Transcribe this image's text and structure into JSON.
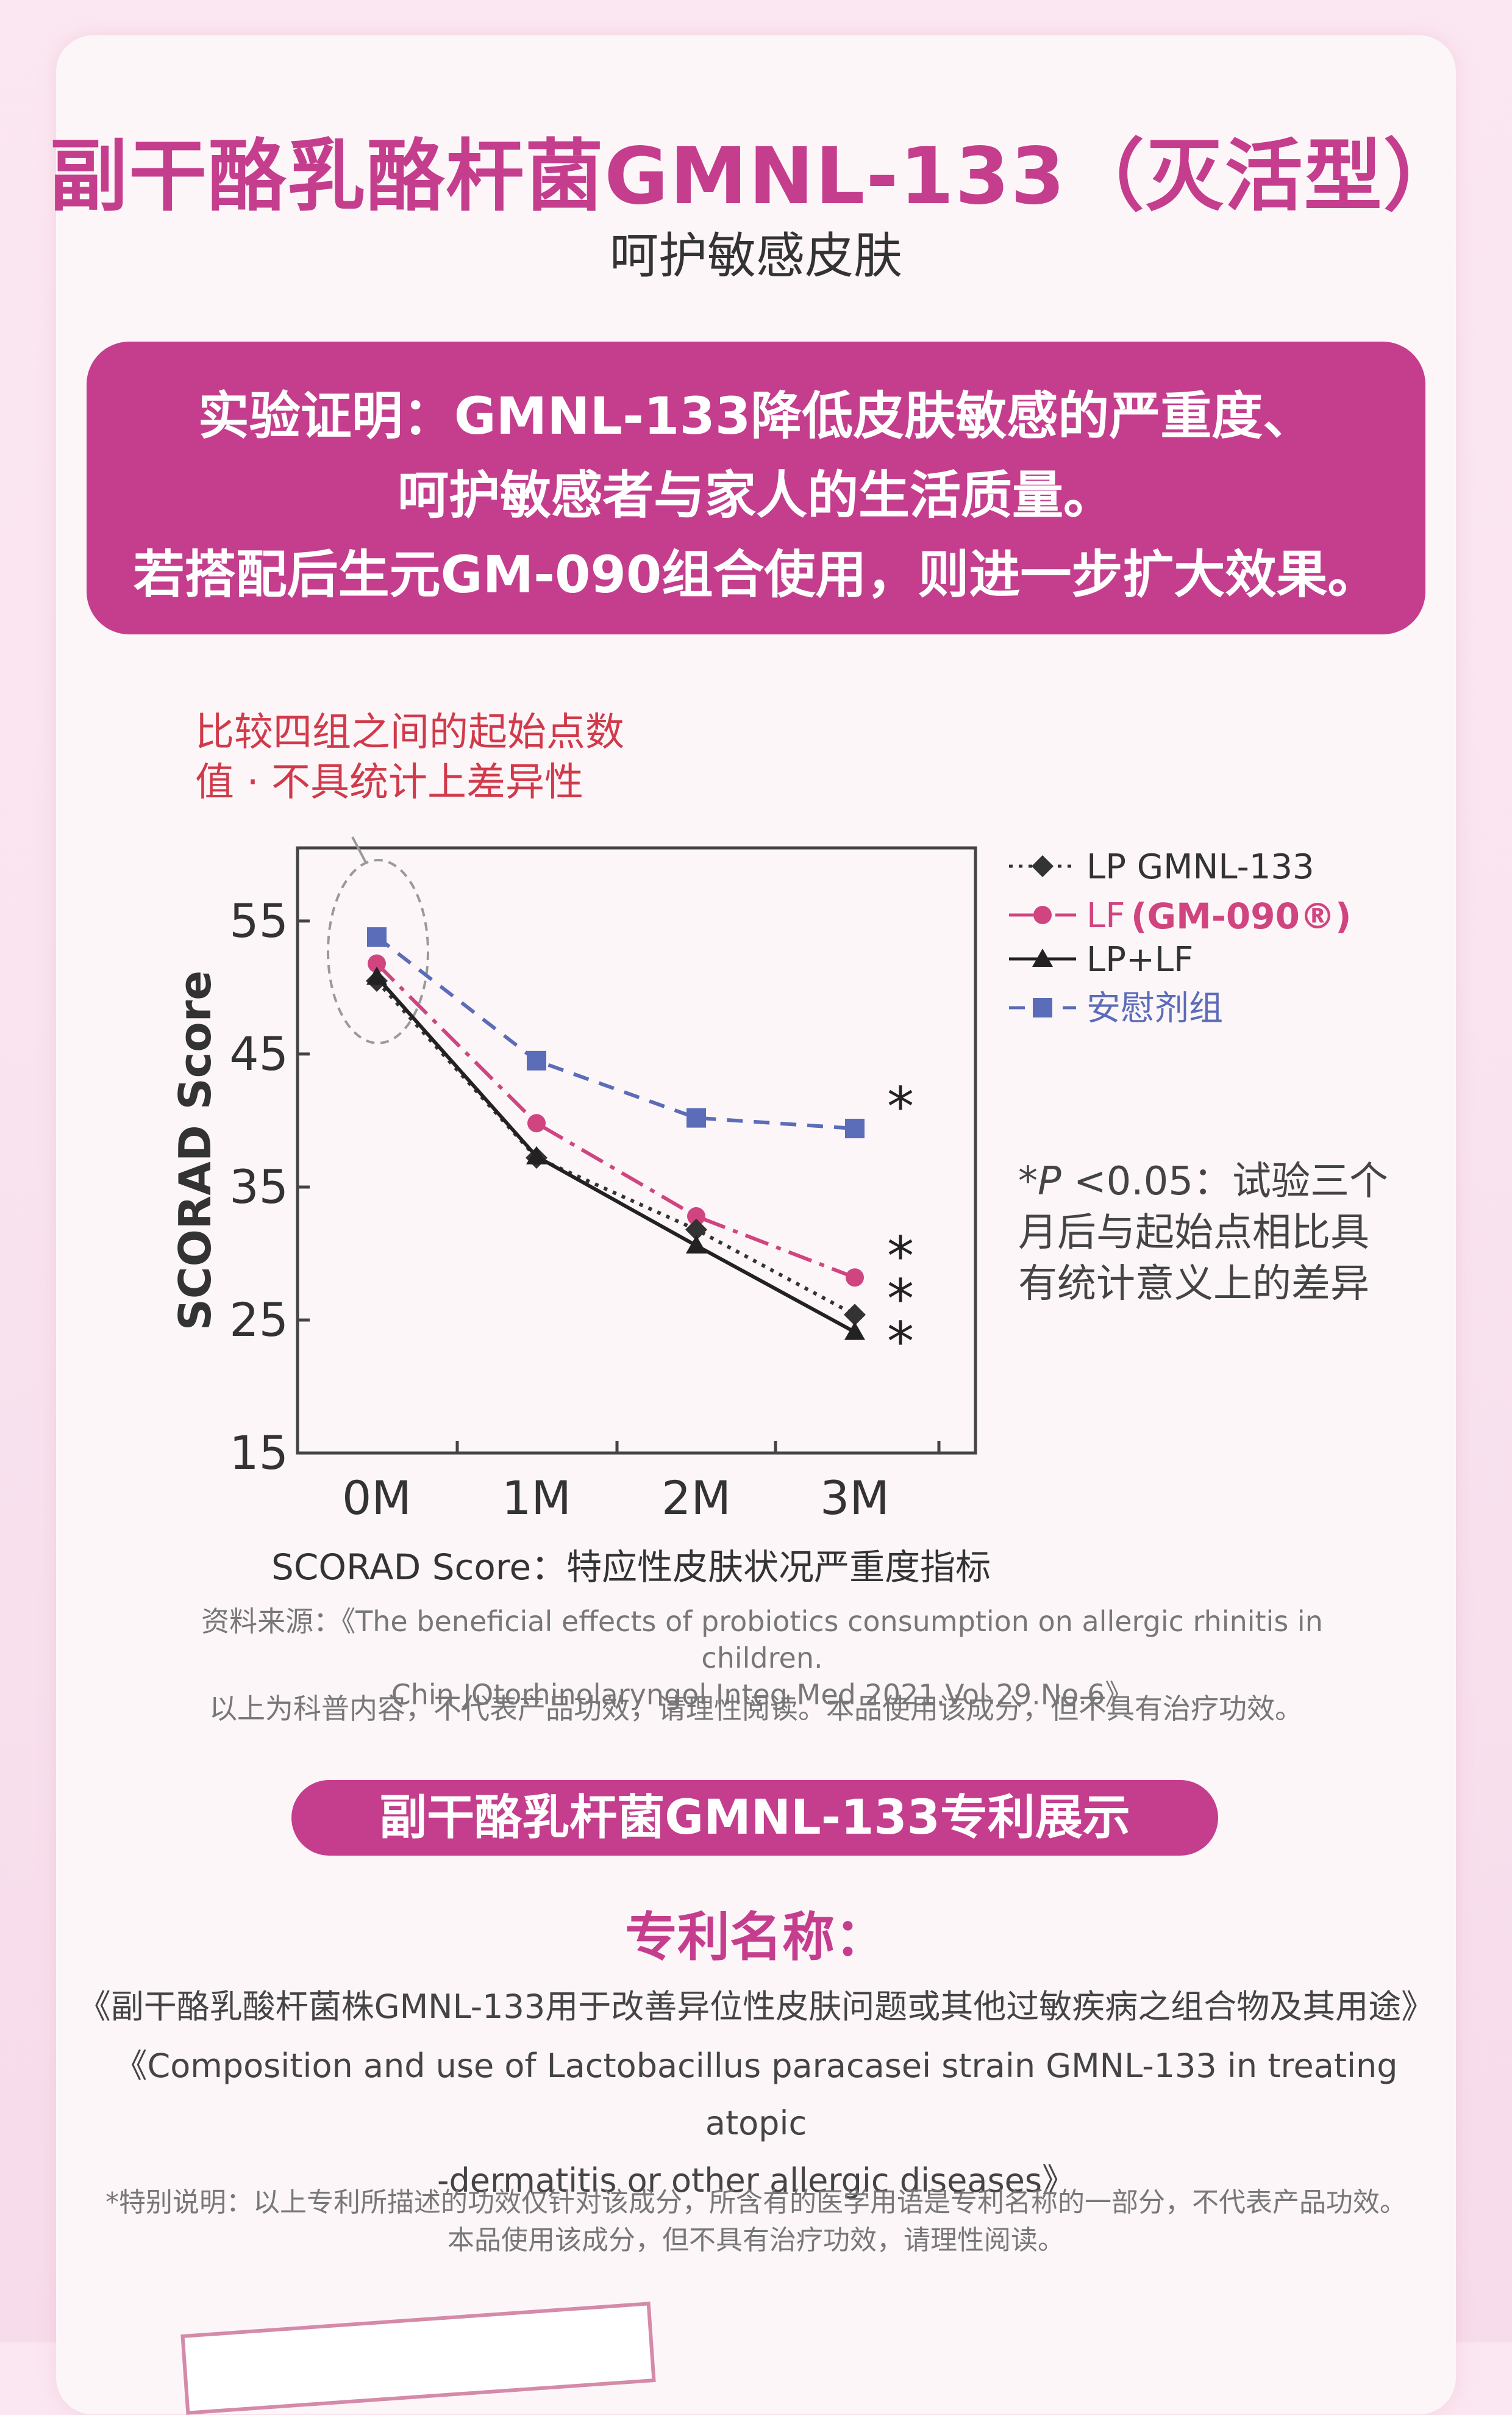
{
  "header": {
    "title": "副干酪乳酪杆菌GMNL-133（灭活型）",
    "subtitle": "呵护敏感皮肤"
  },
  "claim": {
    "line1": "实验证明：GMNL-133降低皮肤敏感的严重度、",
    "line2": "呵护敏感者与家人的生活质量。",
    "line3": "若搭配后生元GM-090组合使用，则进一步扩大效果。"
  },
  "baseline_note": {
    "line1": "比较四组之间的起始点数",
    "line2": "值 · 不具统计上差异性"
  },
  "significance_note": {
    "p_label": "*P",
    "p_value": " <0.05：试验三个",
    "line2": "月后与起始点相比具",
    "line3": "有统计意义上的差异"
  },
  "colors": {
    "accent": "#c43e8d",
    "lp": "#333333",
    "lf": "#d0457f",
    "lplf": "#222222",
    "placebo": "#5b6cb8"
  },
  "chart_data": {
    "type": "line",
    "ylabel": "SCORAD Score",
    "xlabel": "",
    "categories": [
      "0M",
      "1M",
      "2M",
      "3M"
    ],
    "yticks": [
      55,
      45,
      35,
      25,
      15
    ],
    "ylim": [
      15,
      60.5
    ],
    "grid": false,
    "legend_position": "top-right",
    "series": [
      {
        "name": "LP GMNL-133",
        "marker": "diamond",
        "line": "dotted",
        "values": [
          50.5,
          37.2,
          31.8,
          25.4
        ]
      },
      {
        "name": "LF",
        "name_suffix": "(GM-090®)",
        "marker": "circle",
        "line": "dash-dot",
        "values": [
          51.8,
          39.8,
          32.8,
          28.2
        ]
      },
      {
        "name": "LP+LF",
        "marker": "triangle",
        "line": "solid",
        "values": [
          50.8,
          37.3,
          30.6,
          24.1
        ]
      },
      {
        "name": "安慰剂组",
        "marker": "square",
        "line": "dashed",
        "values": [
          53.8,
          44.5,
          40.2,
          39.4
        ]
      }
    ],
    "significance_mark": "*"
  },
  "definition": "SCORAD Score：特应性皮肤状况严重度指标",
  "source": {
    "line1": "资料来源：《The beneficial effects of probiotics consumption on allergic rhinitis in children.",
    "line2": "Chin JOtorhinolaryngol Integ Med 2021.Vol.29.No.6》"
  },
  "disclaimer1": "以上为科普内容，不代表产品功效，请理性阅读。本品使用该成分，但不具有治疗功效。",
  "patent": {
    "pill": "副干酪乳杆菌GMNL-133专利展示",
    "name_heading": "专利名称：",
    "cn_title": "《副干酪乳酸杆菌株GMNL-133用于改善异位性皮肤问题或其他过敏疾病之组合物及其用途》",
    "en_title_line1": "《Composition and use of Lactobacillus paracasei strain GMNL-133 in treating atopic",
    "en_title_line2": "-dermatitis or other allergic diseases》",
    "disclaimer_line1": "*特别说明：以上专利所描述的功效仅针对该成分，所含有的医学用语是专利名称的一部分，不代表产品功效。",
    "disclaimer_line2": "本品使用该成分，但不具有治疗功效，请理性阅读。"
  }
}
